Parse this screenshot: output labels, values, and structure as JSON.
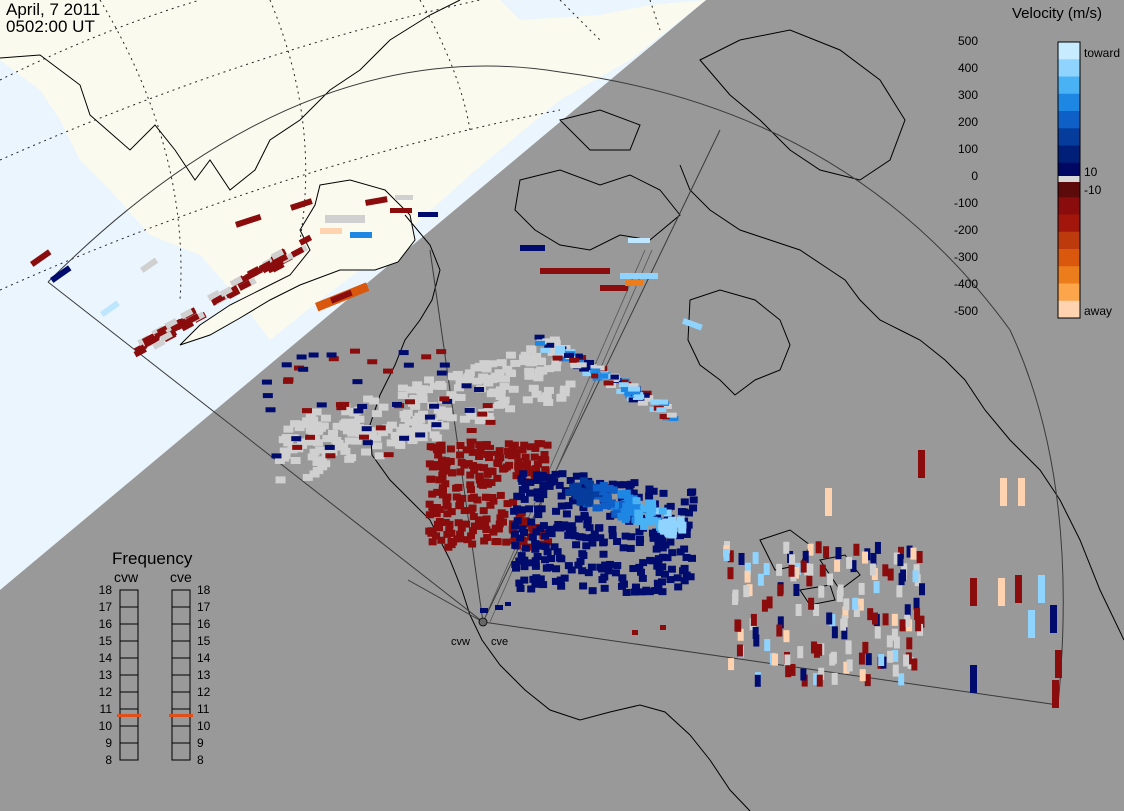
{
  "header": {
    "date": "April, 7 2011",
    "time": "0502:00 UT"
  },
  "colors": {
    "night_side": "#999999",
    "day_side": "#eaf5fd",
    "day_land": "#fbfaee",
    "no_data": "#d0d0d0",
    "toward": "#bfe6ff",
    "away": "#ffd3b0"
  },
  "velocity_scale": {
    "title": "Velocity (m/s)",
    "left_ticks": [
      "500",
      "400",
      "300",
      "200",
      "100",
      "0",
      "-100",
      "-200",
      "-300",
      "-400",
      "-500"
    ],
    "right_labels": {
      "top": "toward",
      "pos": "10",
      "neg": "-10",
      "bottom": "away"
    },
    "colors": [
      "#c8ecff",
      "#8fd3ff",
      "#49b2f5",
      "#1e86e3",
      "#0e5fc7",
      "#063d9d",
      "#001f78",
      "#000864",
      "#5c0a0a",
      "#8a0c0c",
      "#a3160c",
      "#bd3a0c",
      "#d9580e",
      "#ec7d1c",
      "#fca54a",
      "#ffd3b0"
    ]
  },
  "frequency_panel": {
    "title": "Frequency",
    "radars": [
      "cvw",
      "cve"
    ],
    "scale": [
      "18",
      "17",
      "16",
      "15",
      "14",
      "13",
      "12",
      "11",
      "10",
      "9",
      "8"
    ],
    "cvw_mhz": 10.9,
    "cve_mhz": 10.9
  },
  "radar_labels": {
    "cvw": "cvw",
    "cve": "cve"
  }
}
